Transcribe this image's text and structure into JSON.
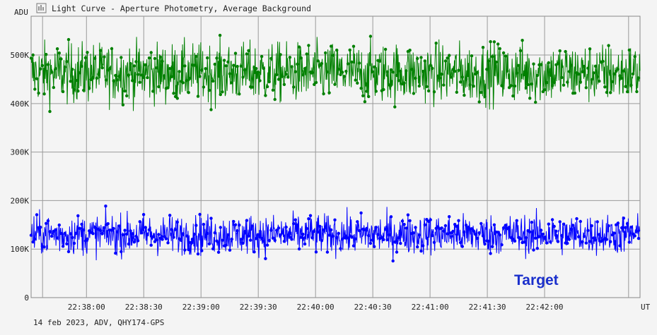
{
  "window": {
    "title": "Light Curve - Aperture Photometry, Average Background",
    "icon": "chart-icon"
  },
  "footer": {
    "info": "14 feb 2023, ADV, QHY174-GPS"
  },
  "chart_data": {
    "type": "line",
    "ylabel": "ADU",
    "xlabel": "UT",
    "ylim": [
      0,
      580000
    ],
    "xlim": [
      "22:37:31",
      "22:42:50"
    ],
    "y_ticks": [
      0,
      100000,
      200000,
      300000,
      400000,
      500000
    ],
    "y_tick_labels": [
      "0",
      "100K",
      "200K",
      "300K",
      "400K",
      "500K"
    ],
    "x_tick_labels": [
      "22:38:00",
      "22:38:30",
      "22:39:00",
      "22:39:30",
      "22:40:00",
      "22:40:30",
      "22:41:00",
      "22:41:30",
      "22:42:00"
    ],
    "grid": true,
    "legend": "none",
    "series": [
      {
        "color": "#008000",
        "mean": 463000,
        "spread": 30000,
        "min": 365000,
        "max": 553000
      },
      {
        "color": "#0000ff",
        "mean": 130000,
        "spread": 20000,
        "min": 73000,
        "max": 205000
      }
    ],
    "annotations": [
      {
        "text": "Target",
        "color": "#1a2fcc"
      }
    ]
  }
}
